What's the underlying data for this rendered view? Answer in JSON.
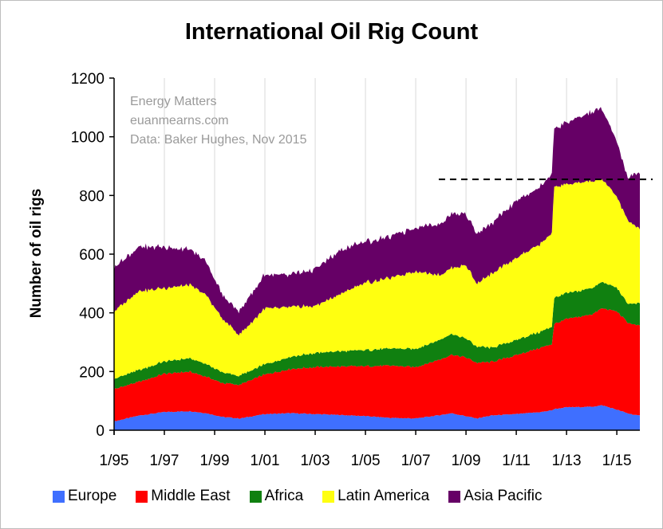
{
  "colors": {
    "Europe": "#3f6fff",
    "Middle East": "#ff0000",
    "Africa": "#108010",
    "Latin America": "#ffff10",
    "Asia Pacific": "#660066"
  },
  "chart_data": {
    "type": "area",
    "stacked": true,
    "title": "International Oil Rig Count",
    "xlabel": "",
    "ylabel": "Number of oil rigs",
    "ylim": [
      0,
      1200
    ],
    "yticks": [
      0,
      200,
      400,
      600,
      800,
      1000,
      1200
    ],
    "xlim": [
      "1995-01",
      "2015-12"
    ],
    "xtick_labels": [
      "1/95",
      "1/97",
      "1/99",
      "1/01",
      "1/03",
      "1/05",
      "1/07",
      "1/09",
      "1/11",
      "1/13",
      "1/15"
    ],
    "grid": "vertical",
    "legend_position": "bottom",
    "annotations": [
      "Energy Matters",
      "euanmearns.com",
      "Data: Baker Hughes, Nov 2015"
    ],
    "reference_line": {
      "y": 855,
      "style": "dashed",
      "from": "2007-12"
    },
    "x": [
      "1995-01",
      "1996-01",
      "1997-01",
      "1998-01",
      "1998-09",
      "1999-05",
      "2000-01",
      "2001-01",
      "2002-01",
      "2003-01",
      "2004-01",
      "2005-01",
      "2006-01",
      "2007-01",
      "2008-01",
      "2008-06",
      "2009-01",
      "2009-06",
      "2010-01",
      "2011-01",
      "2012-01",
      "2012-06",
      "2012-07",
      "2013-01",
      "2014-01",
      "2014-06",
      "2015-01",
      "2015-06",
      "2015-11"
    ],
    "series": [
      {
        "name": "Europe",
        "values": [
          30,
          50,
          62,
          65,
          58,
          45,
          40,
          55,
          58,
          55,
          52,
          48,
          42,
          40,
          52,
          58,
          48,
          40,
          50,
          55,
          62,
          68,
          72,
          78,
          80,
          85,
          70,
          58,
          50
        ]
      },
      {
        "name": "Middle East",
        "values": [
          110,
          115,
          130,
          135,
          125,
          115,
          115,
          135,
          150,
          160,
          165,
          170,
          178,
          175,
          190,
          200,
          200,
          190,
          182,
          200,
          220,
          225,
          290,
          300,
          315,
          330,
          335,
          310,
          305
        ]
      },
      {
        "name": "Africa",
        "values": [
          35,
          40,
          42,
          45,
          43,
          36,
          30,
          35,
          42,
          48,
          52,
          55,
          58,
          62,
          68,
          70,
          65,
          55,
          48,
          52,
          55,
          60,
          88,
          88,
          90,
          90,
          80,
          65,
          75
        ]
      },
      {
        "name": "Latin America",
        "values": [
          230,
          270,
          250,
          250,
          235,
          180,
          140,
          190,
          170,
          160,
          195,
          230,
          240,
          265,
          220,
          225,
          250,
          215,
          250,
          280,
          300,
          320,
          380,
          370,
          365,
          350,
          310,
          285,
          255
        ]
      },
      {
        "name": "Asia Pacific",
        "values": [
          150,
          150,
          140,
          120,
          115,
          80,
          80,
          115,
          110,
          125,
          148,
          140,
          140,
          150,
          175,
          185,
          175,
          170,
          170,
          195,
          195,
          205,
          200,
          210,
          235,
          240,
          185,
          145,
          185
        ]
      }
    ]
  }
}
